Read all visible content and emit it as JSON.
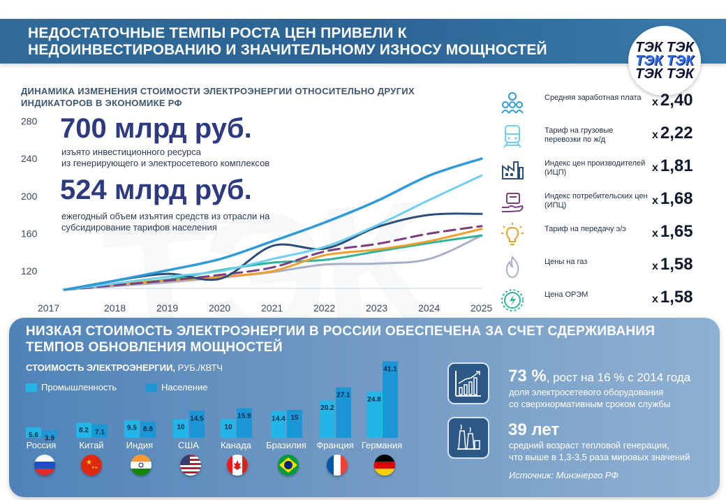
{
  "header": {
    "title_line1": "НЕДОСТАТОЧНЫЕ ТЕМПЫ РОСТА ЦЕН ПРИВЕЛИ К",
    "title_line2": "НЕДОИНВЕСТИРОВАНИЮ И ЗНАЧИТЕЛЬНОМУ ИЗНОСУ МОЩНОСТЕЙ",
    "logo_top": "ТЭК ТЭК",
    "logo_mid": "ТЭК ТЭК",
    "logo_bot": "ТЭК ТЭК"
  },
  "watermark": "ТЭК",
  "subtitle_line1": "ДИНАМИКА ИЗМЕНЕНИЯ СТОИМОСТИ ЭЛЕКТРОЭНЕРГИИ ОТНОСИТЕЛЬНО ДРУГИХ",
  "subtitle_line2": "ИНДИКАТОРОВ В ЭКОНОМИКЕ РФ",
  "highlights": {
    "first_value": "700 млрд руб.",
    "first_note1": "изъято инвестиционного ресурса",
    "first_note2": "из генерирующего и электросетевого комплексов",
    "second_value": "524 млрд руб.",
    "second_note1": "ежегодный объем изъятия средств из отрасли на",
    "second_note2": "субсидирование тарифов населения"
  },
  "indicators": [
    {
      "label": "Средняя заработная плата",
      "x": "х",
      "value": "2,40",
      "icon": "people-icon",
      "color": "#2e9bd6"
    },
    {
      "label": "Тариф на грузовые перевозки по ж/д",
      "x": "х",
      "value": "2,22",
      "icon": "train-icon",
      "color": "#6ecff0"
    },
    {
      "label": "Индекс цен производителей (ИЦП)",
      "x": "х",
      "value": "1,81",
      "icon": "factory-icon",
      "color": "#2b4f7a"
    },
    {
      "label": "Индекс потребительских цен (ИПЦ)",
      "x": "х",
      "value": "1,68",
      "icon": "basket-hand-icon",
      "color": "#7a3d7e"
    },
    {
      "label": "Тариф на передачу э/э",
      "x": "х",
      "value": "1,65",
      "icon": "lightbulb-icon",
      "color": "#f0a02a"
    },
    {
      "label": "Цены на газ",
      "x": "х",
      "value": "1,58",
      "icon": "gas-flame-icon",
      "color": "#a9b0c6"
    },
    {
      "label": "Цена ОРЭМ",
      "x": "х",
      "value": "1,58",
      "icon": "energy-gear-icon",
      "color": "#2fb39a"
    }
  ],
  "chart_data": [
    {
      "type": "line",
      "title": "ДИНАМИКА ИЗМЕНЕНИЯ СТОИМОСТИ ЭЛЕКТРОЭНЕРГИИ ОТНОСИТЕЛЬНО ДРУГИХ ИНДИКАТОРОВ В ЭКОНОМИКЕ РФ",
      "x": [
        "2017",
        "2018",
        "2019",
        "2020",
        "2021",
        "2022",
        "2023",
        "2024",
        "2025"
      ],
      "yticks": [
        120,
        160,
        200,
        240,
        280
      ],
      "ylim": [
        100,
        290
      ],
      "grid": false,
      "series": [
        {
          "name": "Средняя заработная плата",
          "color": "#2e9bd6",
          "dashed": false,
          "values": [
            100,
            110,
            121,
            133,
            152,
            172,
            195,
            222,
            240
          ]
        },
        {
          "name": "Тариф на грузовые перевозки по ж/д",
          "color": "#6ecff0",
          "dashed": false,
          "values": [
            100,
            107,
            114,
            120,
            133,
            146,
            169,
            196,
            222
          ]
        },
        {
          "name": "Индекс цен производителей (ИЦП)",
          "color": "#2b4f7a",
          "dashed": false,
          "values": [
            100,
            110,
            117,
            112,
            147,
            144,
            167,
            180,
            181
          ]
        },
        {
          "name": "Индекс потребительских цен (ИПЦ)",
          "color": "#7a3d7e",
          "dashed": true,
          "values": [
            100,
            105,
            110,
            116,
            124,
            141,
            149,
            160,
            168
          ]
        },
        {
          "name": "Тариф на передачу э/э",
          "color": "#f0a02a",
          "dashed": false,
          "values": [
            100,
            106,
            110,
            114,
            120,
            137,
            143,
            152,
            165
          ]
        },
        {
          "name": "Цены на газ",
          "color": "#a9b0c6",
          "dashed": false,
          "values": [
            100,
            104,
            108,
            113,
            119,
            127,
            128,
            133,
            158
          ]
        },
        {
          "name": "Цена ОРЭМ",
          "color": "#2fb39a",
          "dashed": false,
          "values": [
            100,
            106,
            111,
            121,
            129,
            132,
            141,
            150,
            158
          ]
        }
      ]
    },
    {
      "type": "bar",
      "title": "СТОИМОСТЬ ЭЛЕКТРОЭНЕРГИИ,",
      "unit": "РУБ./КВТЧ",
      "categories": [
        "Россия",
        "Китай",
        "Индия",
        "США",
        "Канада",
        "Бразилия",
        "Франция",
        "Германия"
      ],
      "series": [
        {
          "name": "Промышленность",
          "color": "#22b5e6",
          "values": [
            5.6,
            8.2,
            9.5,
            10,
            10,
            14.4,
            20.2,
            24.8
          ]
        },
        {
          "name": "Население",
          "color": "#1c96d4",
          "values": [
            3.9,
            7.1,
            8.8,
            14.5,
            15.9,
            15,
            27.1,
            41.1
          ]
        }
      ],
      "labels_industry": [
        "5.6",
        "8.2",
        "9.5",
        "10",
        "10",
        "14.4",
        "20.2",
        "24.8"
      ],
      "labels_population": [
        "3.9",
        "7.1",
        "8.8",
        "14.5",
        "15.9",
        "15",
        "27.1",
        "41.1"
      ]
    }
  ],
  "panel": {
    "title_line1": "НИЗКАЯ СТОИМОСТЬ ЭЛЕКТРОЭНЕРГИИ В РОССИИ ОБЕСПЕЧЕНА ЗА СЧЕТ СДЕРЖИВАНИЯ",
    "title_line2": "ТЕМПОВ ОБНОВЛЕНИЯ МОЩНОСТЕЙ",
    "stat1_big": "73 %",
    "stat1_rest": ", рост на 16 % с 2014 года",
    "stat1_note1": "доля электросетевого оборудования",
    "stat1_note2": "со сверхнормативным сроком службы",
    "stat2_big": "39 лет",
    "stat2_note1": "средний возраст тепловой генерации,",
    "stat2_note2": "что выше в 1,3-3,5 раза мировых значений",
    "source": "Источник: Минэнерго РФ"
  },
  "flags": [
    "russia-flag-icon",
    "china-flag-icon",
    "india-flag-icon",
    "usa-flag-icon",
    "canada-flag-icon",
    "brazil-flag-icon",
    "france-flag-icon",
    "germany-flag-icon"
  ]
}
